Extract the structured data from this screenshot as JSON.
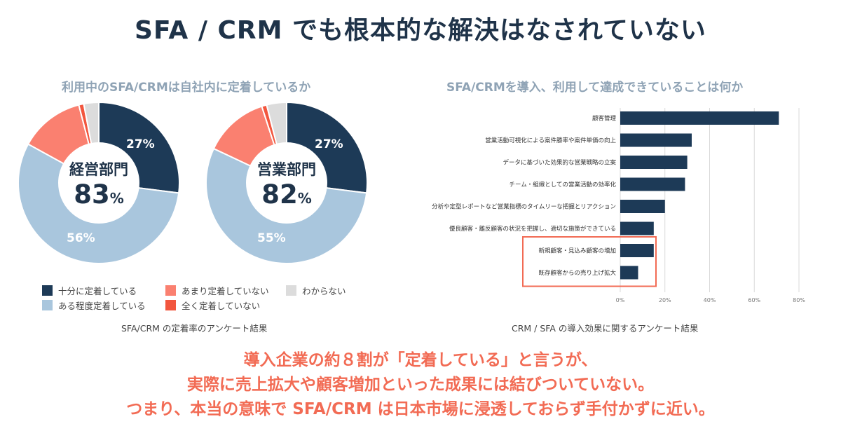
{
  "title": "SFA / CRM でも根本的な解決はなされていない",
  "left_panel": {
    "subtitle": "利用中のSFA/CRMは自社内に定着しているか",
    "caption": "SFA/CRM の定着率のアンケート結果",
    "legend": [
      {
        "label": "十分に定着している",
        "color": "#1d3a57"
      },
      {
        "label": "ある程度定着している",
        "color": "#a9c6dd"
      },
      {
        "label": "あまり定着していない",
        "color": "#fa8070"
      },
      {
        "label": "全く定着していない",
        "color": "#f2563e"
      },
      {
        "label": "わからない",
        "color": "#dcdcdc"
      }
    ]
  },
  "right_panel": {
    "subtitle": "SFA/CRMを導入、利用して達成できていることは何か",
    "caption": "CRM / SFA の導入効果に関するアンケート結果",
    "highlight_color": "#f26b54"
  },
  "chart_data": [
    {
      "type": "pie",
      "variant": "donut",
      "center_label": "経営部門",
      "center_value": "83",
      "center_unit": "%",
      "categories": [
        "十分に定着している",
        "ある程度定着している",
        "あまり定着していない",
        "全く定着していない",
        "わからない"
      ],
      "values": [
        27,
        56,
        13,
        1,
        3
      ],
      "data_labels": [
        "27%",
        "56%",
        "",
        "",
        ""
      ],
      "colors": [
        "#1d3a57",
        "#a9c6dd",
        "#fa8070",
        "#f2563e",
        "#dcdcdc"
      ]
    },
    {
      "type": "pie",
      "variant": "donut",
      "center_label": "営業部門",
      "center_value": "82",
      "center_unit": "%",
      "categories": [
        "十分に定着している",
        "ある程度定着している",
        "あまり定着していない",
        "全く定着していない",
        "わからない"
      ],
      "values": [
        27,
        55,
        13,
        1,
        4
      ],
      "data_labels": [
        "27%",
        "55%",
        "",
        "",
        ""
      ],
      "colors": [
        "#1d3a57",
        "#a9c6dd",
        "#fa8070",
        "#f2563e",
        "#dcdcdc"
      ]
    },
    {
      "type": "bar",
      "orientation": "horizontal",
      "categories": [
        "顧客管理",
        "営業活動可視化による案件勝率や案件単価の向上",
        "データに基づいた効果的な営業戦略の立案",
        "チーム・組織としての営業活動の効率化",
        "分析や定型レポートなど営業指標のタイムリーな把握とリアクション",
        "優良顧客・離反顧客の状況を把握し、適切な施策ができている",
        "新規顧客・見込み顧客の増加",
        "既存顧客からの売り上げ拡大"
      ],
      "values": [
        71,
        32,
        30,
        29,
        20,
        15,
        15,
        8
      ],
      "x_ticks": [
        "0%",
        "20%",
        "40%",
        "60%",
        "80%"
      ],
      "xlim": [
        0,
        80
      ],
      "unit": "%",
      "grid": true,
      "highlighted_categories": [
        "新規顧客・見込み顧客の増加",
        "既存顧客からの売り上げ拡大"
      ],
      "bar_color": "#1d3a57"
    }
  ],
  "conclusion": {
    "line1": "導入企業の約８割が「定着している」と言うが、",
    "line2": "実際に売上拡大や顧客増加といった成果には結びついていない。",
    "line3": "つまり、本当の意味で SFA/CRM は日本市場に浸透しておらず手付かずに近い。"
  }
}
